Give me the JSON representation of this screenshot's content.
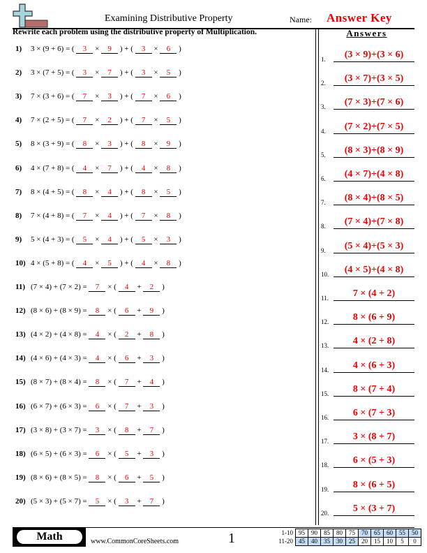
{
  "header": {
    "title": "Examining Distributive Property",
    "name_label": "Name:",
    "answer_key": "Answer Key",
    "logo_icon": "plus-logo-icon"
  },
  "instructions": "Rewrite each problem using the distributive property of Multiplication.",
  "answers_heading": "Answers",
  "problems": [
    {
      "n": "1)",
      "q": "3 × (9 + 6) = (",
      "b": [
        "3",
        "9",
        "3",
        "6"
      ],
      "t": 1
    },
    {
      "n": "2)",
      "q": "3 × (7 + 5) = (",
      "b": [
        "3",
        "7",
        "3",
        "5"
      ],
      "t": 1
    },
    {
      "n": "3)",
      "q": "7 × (3 + 6) = (",
      "b": [
        "7",
        "3",
        "7",
        "6"
      ],
      "t": 1
    },
    {
      "n": "4)",
      "q": "7 × (2 + 5) = (",
      "b": [
        "7",
        "2",
        "7",
        "5"
      ],
      "t": 1
    },
    {
      "n": "5)",
      "q": "8 × (3 + 9) = (",
      "b": [
        "8",
        "3",
        "8",
        "9"
      ],
      "t": 1
    },
    {
      "n": "6)",
      "q": "4 × (7 + 8) = (",
      "b": [
        "4",
        "7",
        "4",
        "8"
      ],
      "t": 1
    },
    {
      "n": "7)",
      "q": "8 × (4 + 5) = (",
      "b": [
        "8",
        "4",
        "8",
        "5"
      ],
      "t": 1
    },
    {
      "n": "8)",
      "q": "7 × (4 + 8) = (",
      "b": [
        "7",
        "4",
        "7",
        "8"
      ],
      "t": 1
    },
    {
      "n": "9)",
      "q": "5 × (4 + 3) = (",
      "b": [
        "5",
        "4",
        "5",
        "3"
      ],
      "t": 1
    },
    {
      "n": "10)",
      "q": "4 × (5 + 8) = (",
      "b": [
        "4",
        "5",
        "4",
        "8"
      ],
      "t": 1
    },
    {
      "n": "11)",
      "q": "(7 × 4) + (7 × 2) =",
      "b": [
        "7",
        "4",
        "2"
      ],
      "t": 2
    },
    {
      "n": "12)",
      "q": "(8 × 6) + (8 × 9) =",
      "b": [
        "8",
        "6",
        "9"
      ],
      "t": 2
    },
    {
      "n": "13)",
      "q": "(4 × 2) + (4 × 8) =",
      "b": [
        "4",
        "2",
        "8"
      ],
      "t": 2
    },
    {
      "n": "14)",
      "q": "(4 × 6) + (4 × 3) =",
      "b": [
        "4",
        "6",
        "3"
      ],
      "t": 2
    },
    {
      "n": "15)",
      "q": "(8 × 7) + (8 × 4) =",
      "b": [
        "8",
        "7",
        "4"
      ],
      "t": 2
    },
    {
      "n": "16)",
      "q": "(6 × 7) + (6 × 3) =",
      "b": [
        "6",
        "7",
        "3"
      ],
      "t": 2
    },
    {
      "n": "17)",
      "q": "(3 × 8) + (3 × 7) =",
      "b": [
        "3",
        "8",
        "7"
      ],
      "t": 2
    },
    {
      "n": "18)",
      "q": "(6 × 5) + (6 × 3) =",
      "b": [
        "6",
        "5",
        "3"
      ],
      "t": 2
    },
    {
      "n": "19)",
      "q": "(8 × 6) + (8 × 5) =",
      "b": [
        "8",
        "6",
        "5"
      ],
      "t": 2
    },
    {
      "n": "20)",
      "q": "(5 × 3) + (5 × 7) =",
      "b": [
        "5",
        "3",
        "7"
      ],
      "t": 2
    }
  ],
  "answers": [
    "(3 × 9)+(3 × 6)",
    "(3 × 7)+(3 × 5)",
    "(7 × 3)+(7 × 6)",
    "(7 × 2)+(7 × 5)",
    "(8 × 3)+(8 × 9)",
    "(4 × 7)+(4 × 8)",
    "(8 × 4)+(8 × 5)",
    "(7 × 4)+(7 × 8)",
    "(5 × 4)+(5 × 3)",
    "(4 × 5)+(4 × 8)",
    "7 × (4 + 2)",
    "8 × (6 + 9)",
    "4 × (2 + 8)",
    "4 × (6 + 3)",
    "8 × (7 + 4)",
    "6 × (7 + 3)",
    "3 × (8 + 7)",
    "6 × (5 + 3)",
    "8 × (6 + 5)",
    "5 × (3 + 7)"
  ],
  "footer": {
    "subject": "Math",
    "site": "www.CommonCoreSheets.com",
    "page": "1",
    "score_rows": [
      {
        "label": "1-10",
        "values": [
          "95",
          "90",
          "85",
          "80",
          "75",
          "70",
          "65",
          "60",
          "55",
          "50"
        ],
        "highlight_from": 5
      },
      {
        "label": "11-20",
        "values": [
          "45",
          "40",
          "35",
          "30",
          "25",
          "20",
          "15",
          "10",
          "5",
          "0"
        ],
        "highlight_to": 4
      }
    ]
  },
  "colors": {
    "answer": "#ee0000",
    "score_highlight": "#c6dcf5"
  }
}
